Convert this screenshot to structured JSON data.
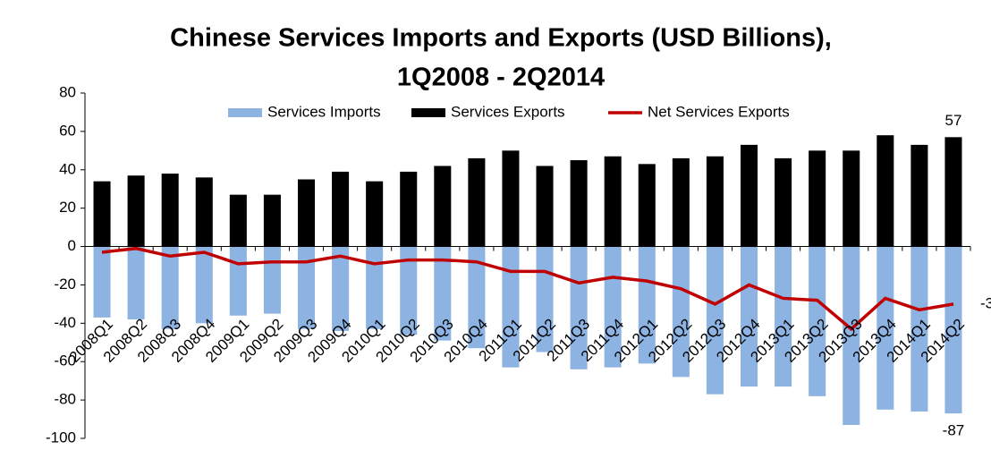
{
  "chart_data": {
    "type": "bar-line",
    "title": [
      "Chinese Services Imports and Exports (USD Billions),",
      "1Q2008 - 2Q2014"
    ],
    "categories": [
      "2008Q1",
      "2008Q2",
      "2008Q3",
      "2008Q4",
      "2009Q1",
      "2009Q2",
      "2009Q3",
      "2009Q4",
      "2010Q1",
      "2010Q2",
      "2010Q3",
      "2010Q4",
      "2011Q1",
      "2011Q2",
      "2011Q3",
      "2011Q4",
      "2012Q1",
      "2012Q2",
      "2012Q3",
      "2012Q4",
      "2013Q1",
      "2013Q2",
      "2013Q3",
      "2013Q4",
      "2014Q1",
      "2014Q2"
    ],
    "series": [
      {
        "name": "Services Imports",
        "kind": "bar",
        "color": "#8db3e2",
        "values": [
          -37,
          -38,
          -43,
          -40,
          -36,
          -35,
          -43,
          -44,
          -43,
          -46,
          -49,
          -53,
          -63,
          -55,
          -64,
          -63,
          -61,
          -68,
          -77,
          -73,
          -73,
          -78,
          -93,
          -85,
          -86,
          -87
        ]
      },
      {
        "name": "Services Exports",
        "kind": "bar",
        "color": "#000000",
        "values": [
          34,
          37,
          38,
          36,
          27,
          27,
          35,
          39,
          34,
          39,
          42,
          46,
          50,
          42,
          45,
          47,
          43,
          46,
          47,
          53,
          46,
          50,
          50,
          58,
          53,
          57
        ]
      },
      {
        "name": "Net Services Exports",
        "kind": "line",
        "color": "#c00000",
        "values": [
          -3,
          -1,
          -5,
          -3,
          -9,
          -8,
          -8,
          -5,
          -9,
          -7,
          -7,
          -8,
          -13,
          -13,
          -19,
          -16,
          -18,
          -22,
          -30,
          -20,
          -27,
          -28,
          -43,
          -27,
          -33,
          -30
        ]
      }
    ],
    "labeled_point": 25,
    "ylim": [
      -100,
      80
    ],
    "yticks": [
      -100,
      -80,
      -60,
      -40,
      -20,
      0,
      20,
      40,
      60,
      80
    ],
    "grid": false
  }
}
